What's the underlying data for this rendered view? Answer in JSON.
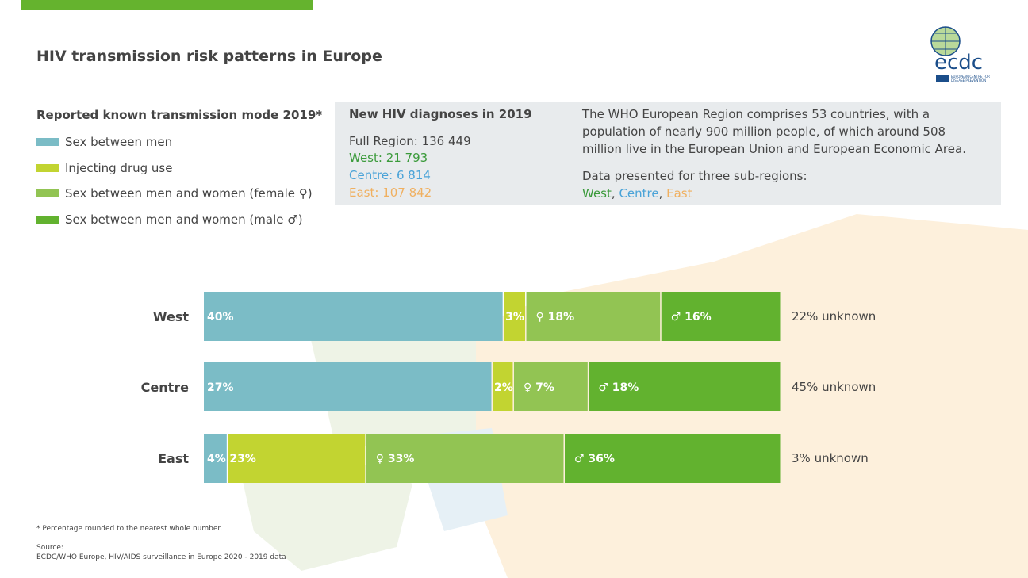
{
  "title": "HIV transmission risk patterns in Europe",
  "logo": {
    "text": "ecdc",
    "subtext": "EUROPEAN CENTRE FOR DISEASE PREVENTION AND CONTROL"
  },
  "legend": {
    "title": "Reported known transmission mode 2019*",
    "items": [
      {
        "label": "Sex between men",
        "color": "#7bbcc6"
      },
      {
        "label": "Injecting drug use",
        "color": "#c2d431"
      },
      {
        "label": "Sex between men and women (female ♀)",
        "color": "#92c453"
      },
      {
        "label": "Sex between men and women (male ♂)",
        "color": "#62b22f"
      }
    ]
  },
  "info": {
    "heading": "New HIV diagnoses in 2019",
    "full": "Full Region: 136 449",
    "west": "West: 21 793",
    "centre": "Centre: 6 814",
    "east": "East: 107 842",
    "description": "The WHO European Region comprises 53 countries, with a population of nearly 900 million people, of which around 508 million live in the European Union and European Economic Area.",
    "subregions_intro": "Data presented for three sub-regions:",
    "sub_west": "West",
    "sub_centre": "Centre",
    "sub_east": "East",
    "colors": {
      "west": "#3a9a3a",
      "centre": "#4aa3d8",
      "east": "#f0b060"
    }
  },
  "chart_data": {
    "type": "bar",
    "orientation": "horizontal",
    "stacked": true,
    "unit": "%",
    "categories": [
      "West",
      "Centre",
      "East"
    ],
    "series": [
      {
        "name": "Sex between men",
        "values": [
          40,
          27,
          4
        ],
        "color": "#7bbcc6"
      },
      {
        "name": "Injecting drug use",
        "values": [
          3,
          2,
          23
        ],
        "color": "#c2d431"
      },
      {
        "name": "Sex between men and women (female ♀)",
        "values": [
          18,
          7,
          33
        ],
        "color": "#92c453"
      },
      {
        "name": "Sex between men and women (male ♂)",
        "values": [
          16,
          18,
          36
        ],
        "color": "#62b22f"
      }
    ],
    "unknown": [
      22,
      45,
      3
    ],
    "unknown_labels": [
      "22% unknown",
      "45% unknown",
      "3% unknown"
    ]
  },
  "footnote": "* Percentage rounded to the nearest whole number.",
  "source_label": "Source:",
  "source": "ECDC/WHO Europe, HIV/AIDS surveillance in Europe 2020 - 2019 data"
}
